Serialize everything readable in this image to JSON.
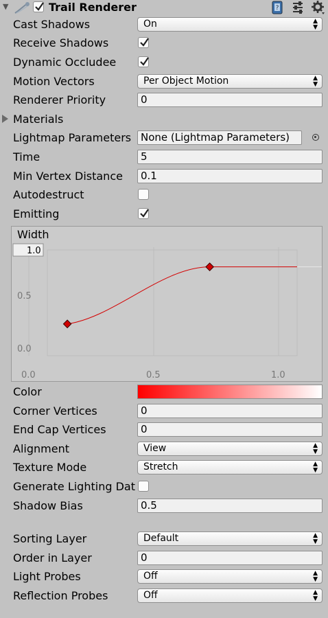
{
  "component": {
    "title": "Trail Renderer",
    "enabled": true,
    "icons": [
      "trail-renderer-icon",
      "help-book-icon",
      "preset-sliders-icon",
      "gear-icon"
    ]
  },
  "fields": {
    "cast_shadows": {
      "label": "Cast Shadows",
      "value": "On"
    },
    "receive_shadows": {
      "label": "Receive Shadows",
      "checked": true
    },
    "dynamic_occludee": {
      "label": "Dynamic Occludee",
      "checked": true
    },
    "motion_vectors": {
      "label": "Motion Vectors",
      "value": "Per Object Motion"
    },
    "renderer_priority": {
      "label": "Renderer Priority",
      "value": "0"
    },
    "materials": {
      "label": "Materials"
    },
    "lightmap_parameters": {
      "label": "Lightmap Parameters",
      "value": "None (Lightmap Parameters)"
    },
    "time": {
      "label": "Time",
      "value": "5"
    },
    "min_vertex_distance": {
      "label": "Min Vertex Distance",
      "value": "0.1"
    },
    "autodestruct": {
      "label": "Autodestruct",
      "checked": false
    },
    "emitting": {
      "label": "Emitting",
      "checked": true
    },
    "color": {
      "label": "Color",
      "gradient_start": "#ff0000",
      "gradient_end": "#ffffff"
    },
    "corner_vertices": {
      "label": "Corner Vertices",
      "value": "0"
    },
    "end_cap_vertices": {
      "label": "End Cap Vertices",
      "value": "0"
    },
    "alignment": {
      "label": "Alignment",
      "value": "View"
    },
    "texture_mode": {
      "label": "Texture Mode",
      "value": "Stretch"
    },
    "generate_lighting_data": {
      "label": "Generate Lighting Dat",
      "checked": false
    },
    "shadow_bias": {
      "label": "Shadow Bias",
      "value": "0.5"
    },
    "sorting_layer": {
      "label": "Sorting Layer",
      "value": "Default"
    },
    "order_in_layer": {
      "label": "Order in Layer",
      "value": "0"
    },
    "light_probes": {
      "label": "Light Probes",
      "value": "Off"
    },
    "reflection_probes": {
      "label": "Reflection Probes",
      "value": "Off"
    }
  },
  "width_curve": {
    "title": "Width",
    "max_field": "1.0",
    "y_ticks": [
      "0.0",
      "0.5"
    ],
    "x_ticks": [
      "0.0",
      "0.5",
      "1.0"
    ],
    "keys": [
      {
        "t": 0.08,
        "v": 0.3
      },
      {
        "t": 0.65,
        "v": 0.84
      }
    ],
    "curve_color": "#d40000"
  }
}
